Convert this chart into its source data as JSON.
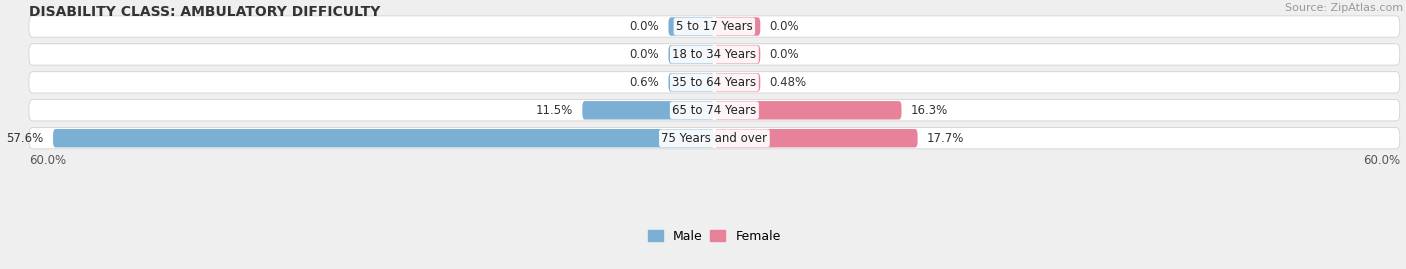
{
  "title": "DISABILITY CLASS: AMBULATORY DIFFICULTY",
  "source": "Source: ZipAtlas.com",
  "categories": [
    "5 to 17 Years",
    "18 to 34 Years",
    "35 to 64 Years",
    "65 to 74 Years",
    "75 Years and over"
  ],
  "male_values": [
    0.0,
    0.0,
    0.6,
    11.5,
    57.6
  ],
  "female_values": [
    0.0,
    0.0,
    0.48,
    16.3,
    17.7
  ],
  "male_labels": [
    "0.0%",
    "0.0%",
    "0.6%",
    "11.5%",
    "57.6%"
  ],
  "female_labels": [
    "0.0%",
    "0.0%",
    "0.48%",
    "16.3%",
    "17.7%"
  ],
  "male_color": "#7bafd4",
  "female_color": "#e8829a",
  "axis_label_left": "60.0%",
  "axis_label_right": "60.0%",
  "max_val": 60.0,
  "min_bar_val": 4.0,
  "bg_color": "#efefef",
  "title_fontsize": 10,
  "label_fontsize": 8.5,
  "cat_fontsize": 8.5,
  "legend_fontsize": 9,
  "source_fontsize": 8
}
